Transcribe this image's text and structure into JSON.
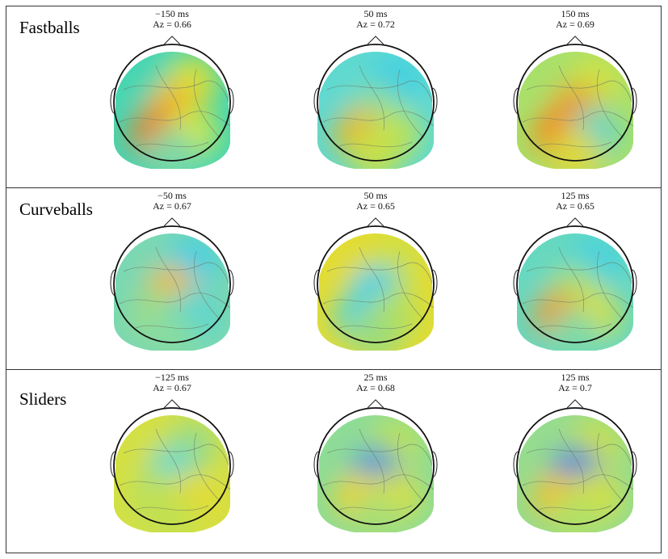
{
  "figure": {
    "rows": [
      {
        "title": "Fastballs",
        "maps": [
          {
            "time": "−150 ms",
            "az": "Az = 0.66",
            "colors": [
              "#46d6b2",
              "#d8e03a",
              "#f0b61e",
              "#e8801e",
              "#cfe846",
              "#7fd8a6"
            ]
          },
          {
            "time": "50 ms",
            "az": "Az = 0.72",
            "colors": [
              "#5fd9d0",
              "#3fd0e2",
              "#88dca2",
              "#e8b82a",
              "#b9e25c",
              "#c7e04a"
            ]
          },
          {
            "time": "150 ms",
            "az": "Az = 0.69",
            "colors": [
              "#a8e06a",
              "#cfe246",
              "#e8a224",
              "#f08a1c",
              "#5fd6c8",
              "#dcd83c"
            ]
          }
        ]
      },
      {
        "title": "Curveballs",
        "maps": [
          {
            "time": "−50 ms",
            "az": "Az = 0.67",
            "colors": [
              "#7ad8b2",
              "#3fcfe6",
              "#f0b82a",
              "#9fdc88",
              "#56d6d4",
              "#86dca2"
            ]
          },
          {
            "time": "50 ms",
            "az": "Az = 0.65",
            "colors": [
              "#e2dc32",
              "#cbe04a",
              "#3bcfe8",
              "#56d4d8",
              "#b8e05a",
              "#9ddc7c"
            ]
          },
          {
            "time": "125 ms",
            "az": "Az = 0.65",
            "colors": [
              "#66d8c0",
              "#44d2e0",
              "#a8e070",
              "#e8a030",
              "#d6e042",
              "#7cdaa8"
            ]
          }
        ]
      },
      {
        "title": "Sliders",
        "maps": [
          {
            "time": "−125 ms",
            "az": "Az = 0.67",
            "colors": [
              "#d4e042",
              "#9cdc86",
              "#5cd8d0",
              "#b8e05e",
              "#e6dc30",
              "#c2e050"
            ]
          },
          {
            "time": "25 ms",
            "az": "Az = 0.68",
            "colors": [
              "#8edc96",
              "#bde258",
              "#2f8ee0",
              "#ecd42c",
              "#d8e03c",
              "#a9de74"
            ]
          },
          {
            "time": "125 ms",
            "az": "Az = 0.7",
            "colors": [
              "#96dc8e",
              "#c9e04c",
              "#2f7ee0",
              "#f0c228",
              "#d6e03e",
              "#b2e066"
            ]
          }
        ]
      }
    ]
  }
}
